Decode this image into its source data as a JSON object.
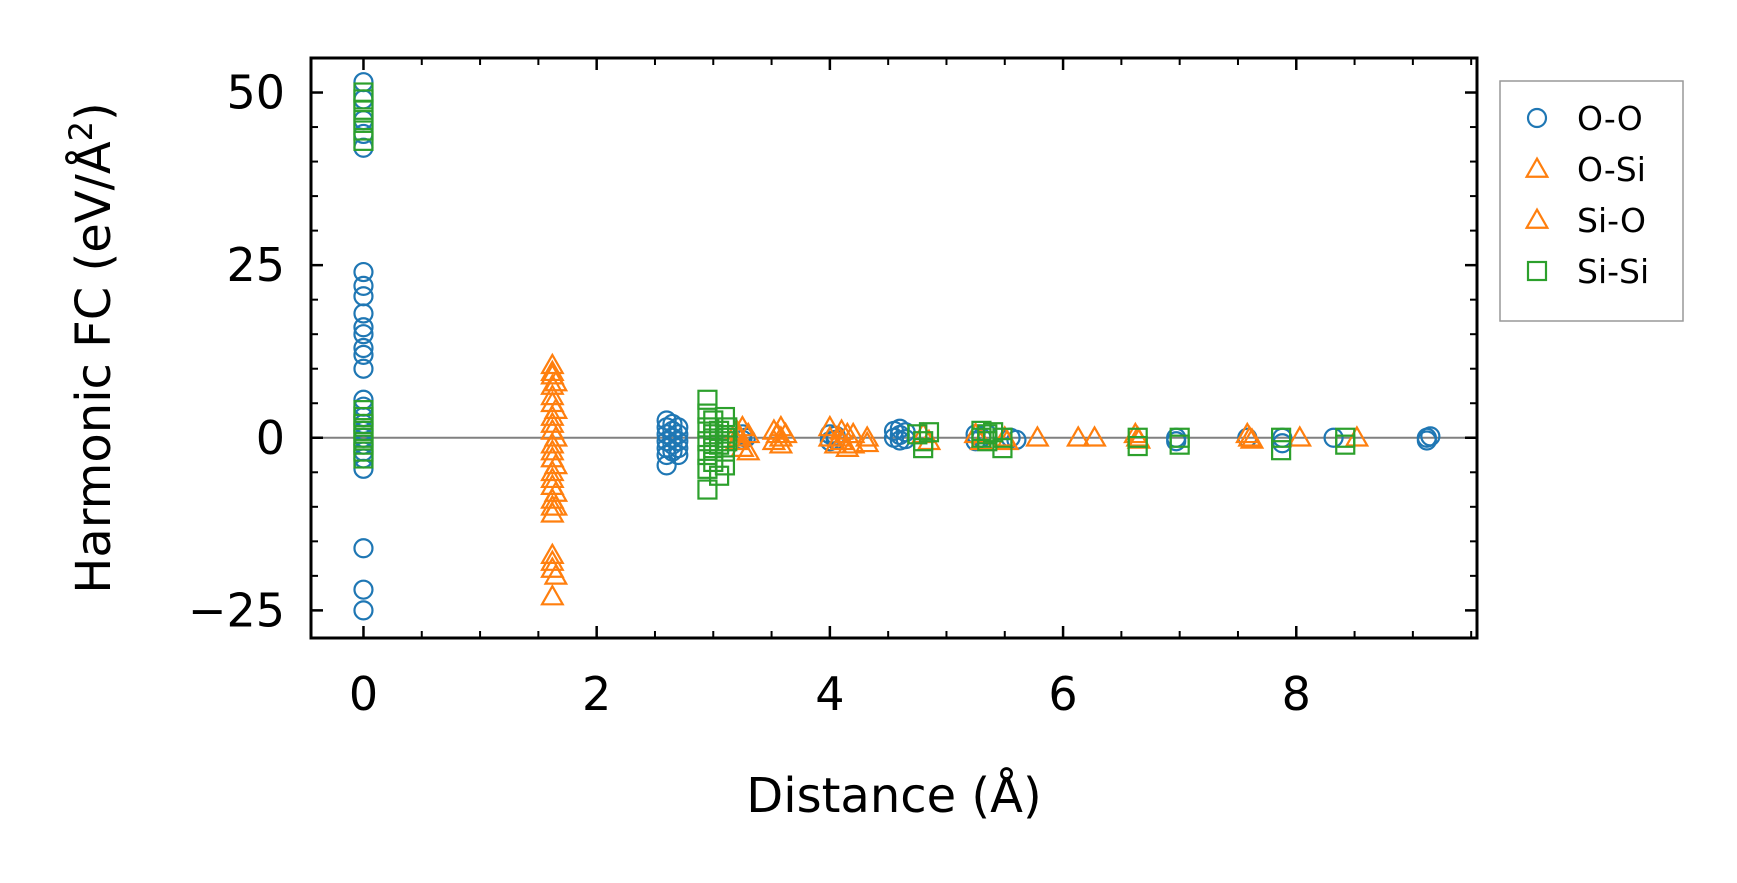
{
  "chart_data": {
    "type": "scatter",
    "xlabel": "Distance (Å)",
    "ylabel_main": "Harmonic FC (eV/Å",
    "ylabel_sup": "2",
    "ylabel_close": ")",
    "xlim": [
      -0.45,
      9.55
    ],
    "ylim": [
      -29,
      55
    ],
    "x_ticks": [
      0,
      2,
      4,
      6,
      8
    ],
    "x_tick_labels": [
      "0",
      "2",
      "4",
      "6",
      "8"
    ],
    "y_ticks": [
      -25,
      0,
      25,
      50
    ],
    "y_tick_labels": [
      "−25",
      "0",
      "25",
      "50"
    ],
    "zero_line": 0,
    "legend_position": "outside-right",
    "series": [
      {
        "name": "O-O",
        "marker": "circle",
        "color": "#1f77b4",
        "points": [
          [
            0,
            51.5
          ],
          [
            0,
            49
          ],
          [
            0,
            46
          ],
          [
            0,
            44
          ],
          [
            0,
            42
          ],
          [
            0,
            24
          ],
          [
            0,
            22
          ],
          [
            0,
            20.5
          ],
          [
            0,
            18
          ],
          [
            0,
            16
          ],
          [
            0,
            15
          ],
          [
            0,
            13
          ],
          [
            0,
            12
          ],
          [
            0,
            10
          ],
          [
            0,
            5.5
          ],
          [
            0,
            4.5
          ],
          [
            0,
            3
          ],
          [
            0,
            2
          ],
          [
            0,
            1
          ],
          [
            0,
            0
          ],
          [
            0,
            -1
          ],
          [
            0,
            -2
          ],
          [
            0,
            -3
          ],
          [
            0,
            -4.5
          ],
          [
            0,
            -16
          ],
          [
            0,
            -22
          ],
          [
            0,
            -25
          ],
          [
            2.6,
            2.5
          ],
          [
            2.6,
            1.5
          ],
          [
            2.6,
            0.5
          ],
          [
            2.6,
            -0.5
          ],
          [
            2.6,
            -1.5
          ],
          [
            2.6,
            -2.5
          ],
          [
            2.6,
            -4
          ],
          [
            2.65,
            2
          ],
          [
            2.65,
            1
          ],
          [
            2.65,
            0
          ],
          [
            2.65,
            -1
          ],
          [
            2.65,
            -2
          ],
          [
            2.7,
            1.5
          ],
          [
            2.7,
            0.5
          ],
          [
            2.7,
            -0.5
          ],
          [
            2.7,
            -1.5
          ],
          [
            2.7,
            -2.5
          ],
          [
            3.25,
            0.5
          ],
          [
            3.25,
            -0.3
          ],
          [
            3.28,
            0
          ],
          [
            4.0,
            0.5
          ],
          [
            4.0,
            -0.5
          ],
          [
            4.05,
            0.3
          ],
          [
            4.05,
            -0.3
          ],
          [
            4.55,
            1
          ],
          [
            4.55,
            0
          ],
          [
            4.6,
            1.3
          ],
          [
            4.6,
            0.4
          ],
          [
            4.6,
            -0.4
          ],
          [
            4.65,
            0.8
          ],
          [
            4.65,
            -0.2
          ],
          [
            5.25,
            0.5
          ],
          [
            5.25,
            -0.5
          ],
          [
            5.3,
            0
          ],
          [
            5.35,
            0.5
          ],
          [
            5.55,
            0
          ],
          [
            5.6,
            -0.3
          ],
          [
            6.97,
            0
          ],
          [
            6.97,
            -0.5
          ],
          [
            7.58,
            0
          ],
          [
            7.88,
            0
          ],
          [
            7.88,
            -0.8
          ],
          [
            8.32,
            0
          ],
          [
            9.12,
            0
          ],
          [
            9.12,
            -0.4
          ],
          [
            9.15,
            0.2
          ]
        ]
      },
      {
        "name": "O-Si",
        "marker": "triangle",
        "color": "#ff7f0e",
        "points": [
          [
            1.62,
            10.5
          ],
          [
            1.62,
            9
          ],
          [
            1.62,
            7.5
          ],
          [
            1.62,
            5
          ],
          [
            1.62,
            3
          ],
          [
            1.62,
            1
          ],
          [
            1.62,
            -1
          ],
          [
            1.62,
            -3
          ],
          [
            1.62,
            -5
          ],
          [
            1.62,
            -7
          ],
          [
            1.62,
            -9
          ],
          [
            1.62,
            -11
          ],
          [
            1.62,
            -17
          ],
          [
            1.62,
            -19
          ],
          [
            1.62,
            -23
          ],
          [
            1.65,
            8
          ],
          [
            1.65,
            4
          ],
          [
            1.65,
            0
          ],
          [
            1.65,
            -4
          ],
          [
            1.65,
            -8
          ],
          [
            1.65,
            -10
          ],
          [
            1.65,
            -20
          ],
          [
            3.2,
            1
          ],
          [
            3.2,
            -0.5
          ],
          [
            3.25,
            1.5
          ],
          [
            3.25,
            -1.5
          ],
          [
            3.3,
            0.5
          ],
          [
            3.3,
            -2
          ],
          [
            3.52,
            1
          ],
          [
            3.52,
            -0.5
          ],
          [
            3.58,
            1.5
          ],
          [
            3.58,
            0
          ],
          [
            3.58,
            -1
          ],
          [
            3.62,
            0.5
          ],
          [
            4.0,
            1.5
          ],
          [
            4.0,
            0
          ],
          [
            4.05,
            -1
          ],
          [
            4.1,
            1
          ],
          [
            4.1,
            -0.5
          ],
          [
            4.15,
            0.5
          ],
          [
            4.15,
            -1.5
          ],
          [
            4.2,
            0.5
          ],
          [
            4.32,
            0
          ],
          [
            4.32,
            -0.8
          ],
          [
            4.8,
            0.5
          ],
          [
            4.85,
            -0.5
          ],
          [
            5.25,
            0.5
          ],
          [
            5.3,
            -0.5
          ],
          [
            5.5,
            0
          ],
          [
            5.52,
            -0.5
          ],
          [
            5.78,
            0
          ],
          [
            6.13,
            0
          ],
          [
            6.27,
            0
          ],
          [
            6.62,
            0.5
          ],
          [
            6.65,
            -0.3
          ],
          [
            7.58,
            0.5
          ],
          [
            7.62,
            -0.3
          ],
          [
            8.03,
            0
          ],
          [
            8.52,
            0
          ]
        ]
      },
      {
        "name": "Si-O",
        "marker": "triangle",
        "color": "#ff7f0e",
        "points": [
          [
            1.62,
            9.5
          ],
          [
            1.62,
            6
          ],
          [
            1.62,
            2
          ],
          [
            1.62,
            -2
          ],
          [
            1.62,
            -6
          ],
          [
            1.62,
            -10
          ],
          [
            1.62,
            -18
          ],
          [
            3.22,
            0
          ],
          [
            3.55,
            0.5
          ],
          [
            4.08,
            0
          ],
          [
            4.2,
            -1
          ],
          [
            6.64,
            0
          ],
          [
            7.6,
            0
          ]
        ]
      },
      {
        "name": "Si-Si",
        "marker": "square",
        "color": "#2ca02c",
        "points": [
          [
            0,
            50
          ],
          [
            0,
            49
          ],
          [
            0,
            47.5
          ],
          [
            0,
            46
          ],
          [
            0,
            44.5
          ],
          [
            0,
            43
          ],
          [
            0,
            4
          ],
          [
            0,
            3
          ],
          [
            0,
            2
          ],
          [
            0,
            1
          ],
          [
            0,
            0
          ],
          [
            0,
            -1
          ],
          [
            0,
            -2
          ],
          [
            0,
            -3
          ],
          [
            2.95,
            5.5
          ],
          [
            2.95,
            3.5
          ],
          [
            2.95,
            1.5
          ],
          [
            2.95,
            -0.5
          ],
          [
            2.95,
            -2.5
          ],
          [
            2.95,
            -4.5
          ],
          [
            2.95,
            -7.5
          ],
          [
            3.0,
            2.5
          ],
          [
            3.0,
            0.5
          ],
          [
            3.0,
            -1.5
          ],
          [
            3.0,
            -3.5
          ],
          [
            3.05,
            1
          ],
          [
            3.05,
            -1
          ],
          [
            3.05,
            -5.5
          ],
          [
            3.1,
            3
          ],
          [
            3.1,
            0
          ],
          [
            3.1,
            -2
          ],
          [
            3.1,
            -4
          ],
          [
            3.12,
            1.5
          ],
          [
            3.12,
            -0.5
          ],
          [
            4.75,
            0.5
          ],
          [
            4.8,
            -0.5
          ],
          [
            4.8,
            -1.5
          ],
          [
            4.85,
            0.8
          ],
          [
            5.3,
            1
          ],
          [
            5.3,
            0
          ],
          [
            5.35,
            0.5
          ],
          [
            5.35,
            -0.5
          ],
          [
            5.4,
            0.8
          ],
          [
            5.48,
            0
          ],
          [
            5.48,
            -1.5
          ],
          [
            6.64,
            0
          ],
          [
            6.64,
            -1.2
          ],
          [
            7.0,
            0
          ],
          [
            7.0,
            -1
          ],
          [
            7.87,
            0
          ],
          [
            7.87,
            -1.8
          ],
          [
            8.42,
            0
          ],
          [
            8.42,
            -1
          ]
        ]
      }
    ]
  }
}
